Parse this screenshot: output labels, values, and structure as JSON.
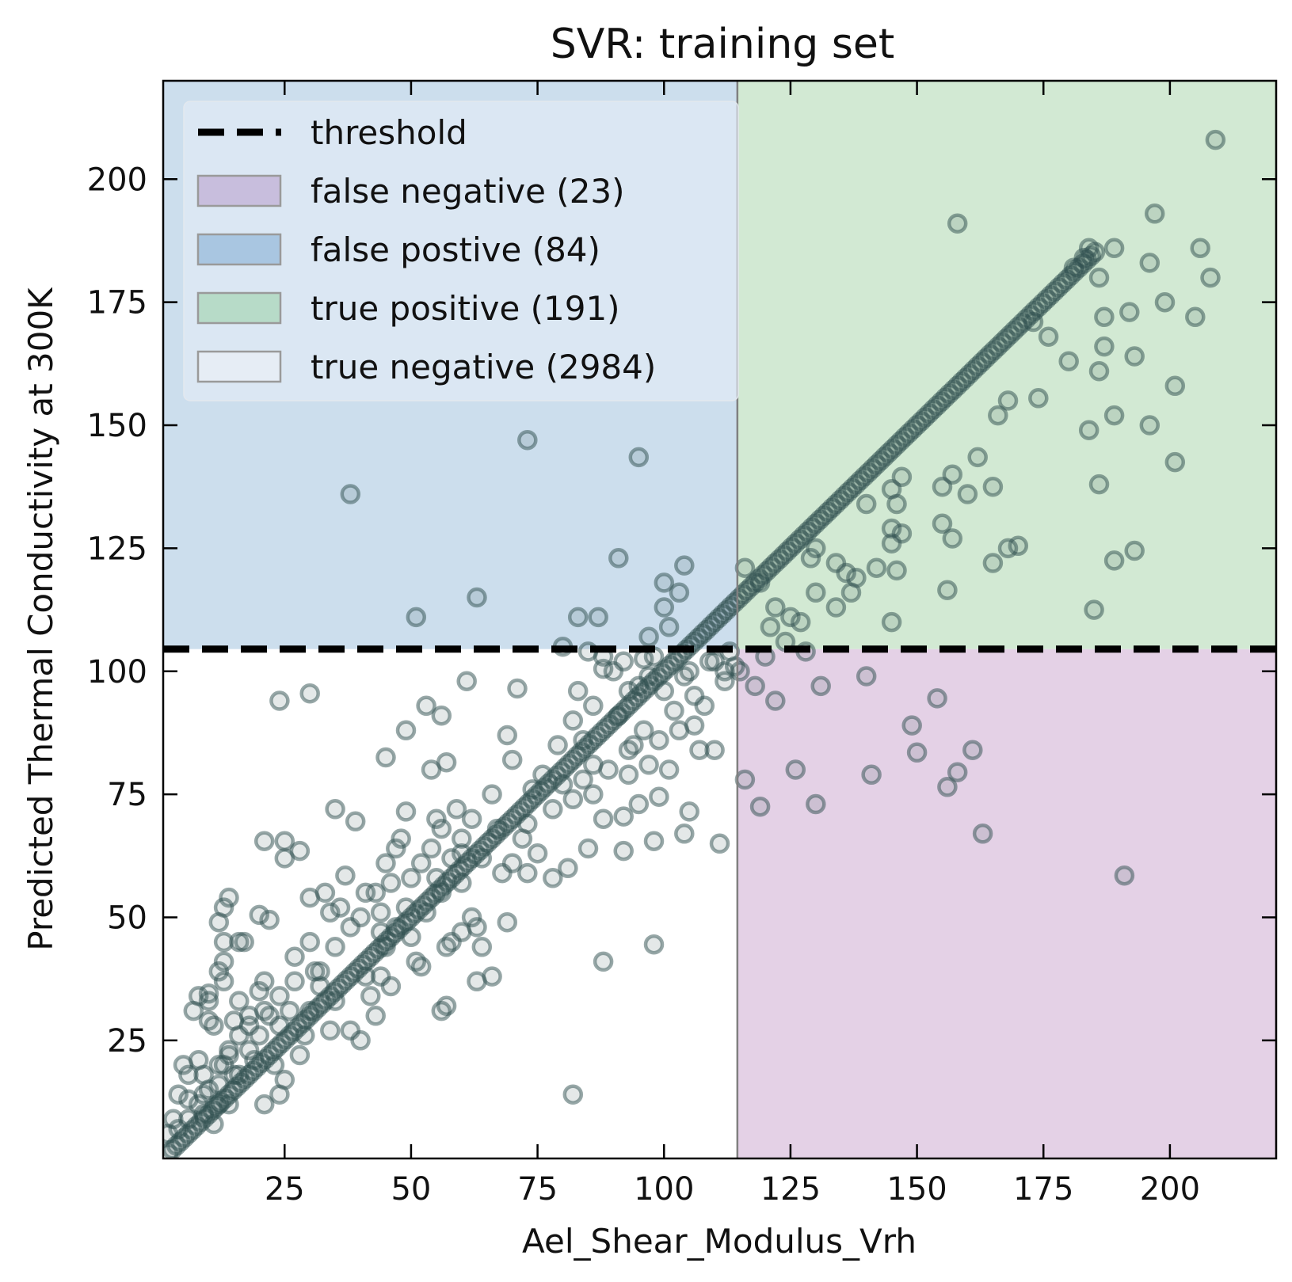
{
  "chart_data": {
    "type": "scatter",
    "title": "SVR: training set",
    "xlabel": "Ael_Shear_Modulus_Vrh",
    "ylabel": "Predicted Thermal Conductivity at 300K",
    "xlim": [
      1,
      221
    ],
    "ylim": [
      1,
      220
    ],
    "x_ticks": [
      25,
      50,
      75,
      100,
      125,
      150,
      175,
      200
    ],
    "y_ticks": [
      25,
      50,
      75,
      100,
      125,
      150,
      175,
      200
    ],
    "threshold": {
      "x": 114.5,
      "y": 104.5
    },
    "grid": false,
    "legend_position": "top-left",
    "legend": [
      {
        "label": "threshold",
        "kind": "dashed-line",
        "color": "#000000"
      },
      {
        "label": "false negative (23)",
        "kind": "patch",
        "color": "#c8bedd"
      },
      {
        "label": "false postive (84)",
        "kind": "patch",
        "color": "#a9c6e1"
      },
      {
        "label": "true positive (191)",
        "kind": "patch",
        "color": "#b7dbc8"
      },
      {
        "label": "true negative (2984)",
        "kind": "patch",
        "color": "#e6edf5"
      }
    ],
    "region_colors": {
      "false_negative": "#e4d1e6",
      "false_positive": "#ccdeed",
      "true_positive": "#d2e9d3",
      "true_negative": "#ffffff"
    },
    "marker_color": "#2f4f4f",
    "diagonal_dense_band": {
      "from": 2,
      "to": 186
    },
    "series": [
      {
        "points": [
          [
            38,
            136
          ],
          [
            73,
            147
          ],
          [
            95,
            143.5
          ],
          [
            63,
            115
          ],
          [
            51,
            111
          ],
          [
            83,
            111
          ],
          [
            87,
            111
          ],
          [
            91,
            123
          ],
          [
            100,
            118
          ],
          [
            104,
            121.5
          ],
          [
            103,
            116
          ],
          [
            100,
            113
          ],
          [
            97,
            107
          ],
          [
            101,
            109
          ],
          [
            80,
            105
          ],
          [
            85,
            104
          ],
          [
            88,
            103
          ],
          [
            98,
            103
          ],
          [
            92,
            102
          ],
          [
            96,
            102.5
          ],
          [
            158,
            191
          ],
          [
            197,
            193
          ],
          [
            209,
            208
          ],
          [
            189,
            186
          ],
          [
            206,
            186
          ],
          [
            208,
            180
          ],
          [
            199,
            175
          ],
          [
            192,
            173
          ],
          [
            187,
            172
          ],
          [
            205,
            172
          ],
          [
            187,
            166
          ],
          [
            193,
            164
          ],
          [
            180,
            163
          ],
          [
            201,
            158
          ],
          [
            186,
            161
          ],
          [
            168,
            155
          ],
          [
            174,
            155.5
          ],
          [
            166,
            152
          ],
          [
            189,
            152
          ],
          [
            196,
            150
          ],
          [
            184,
            149
          ],
          [
            162,
            143.5
          ],
          [
            201,
            142.5
          ],
          [
            157,
            140
          ],
          [
            186,
            138
          ],
          [
            155,
            137.5
          ],
          [
            160,
            136
          ],
          [
            165,
            137.5
          ],
          [
            145,
            137
          ],
          [
            147,
            139.5
          ],
          [
            146,
            134
          ],
          [
            140,
            134
          ],
          [
            145,
            129
          ],
          [
            147,
            128
          ],
          [
            145,
            126
          ],
          [
            155,
            130
          ],
          [
            157,
            127
          ],
          [
            168,
            125
          ],
          [
            189,
            122.5
          ],
          [
            193,
            124.5
          ],
          [
            134,
            122
          ],
          [
            130,
            125
          ],
          [
            129,
            123
          ],
          [
            136,
            120
          ],
          [
            138,
            119
          ],
          [
            142,
            121
          ],
          [
            146,
            120.5
          ],
          [
            137,
            116
          ],
          [
            130,
            116
          ],
          [
            116,
            121
          ],
          [
            119,
            118
          ],
          [
            122,
            113
          ],
          [
            125,
            111
          ],
          [
            127,
            110
          ],
          [
            121,
            109
          ],
          [
            124,
            106
          ],
          [
            128,
            104
          ],
          [
            134,
            113
          ],
          [
            145,
            110
          ],
          [
            156,
            116.5
          ],
          [
            185,
            112.5
          ],
          [
            170,
            125.5
          ],
          [
            165,
            122
          ],
          [
            176,
            168
          ],
          [
            186,
            180
          ],
          [
            196,
            183
          ],
          [
            181,
            182
          ],
          [
            183,
            184
          ],
          [
            184,
            186
          ],
          [
            173,
            171
          ],
          [
            115,
            100
          ],
          [
            118,
            97
          ],
          [
            122,
            94
          ],
          [
            131,
            97
          ],
          [
            140,
            99
          ],
          [
            120,
            103
          ],
          [
            112,
            98
          ],
          [
            109,
            102
          ],
          [
            105,
            100
          ],
          [
            106,
            95
          ],
          [
            116,
            78
          ],
          [
            119,
            72.5
          ],
          [
            126,
            80
          ],
          [
            130,
            73
          ],
          [
            141,
            79
          ],
          [
            149,
            89
          ],
          [
            150,
            83.5
          ],
          [
            154,
            94.5
          ],
          [
            156,
            76.5
          ],
          [
            158,
            79.5
          ],
          [
            161,
            84
          ],
          [
            163,
            67
          ],
          [
            191,
            58.5
          ],
          [
            24,
            94
          ],
          [
            30,
            95.5
          ],
          [
            61,
            98
          ],
          [
            71,
            96.5
          ],
          [
            83,
            96
          ],
          [
            88,
            100.5
          ],
          [
            90,
            100
          ],
          [
            53,
            93
          ],
          [
            56,
            91
          ],
          [
            49,
            88
          ],
          [
            45,
            82.5
          ],
          [
            57,
            81.5
          ],
          [
            54,
            80
          ],
          [
            69,
            87
          ],
          [
            70,
            82
          ],
          [
            84,
            86
          ],
          [
            86,
            81
          ],
          [
            93,
            79
          ],
          [
            93,
            84
          ],
          [
            103,
            88
          ],
          [
            107,
            84
          ],
          [
            110,
            84
          ],
          [
            35,
            72
          ],
          [
            39,
            69.5
          ],
          [
            49,
            71.5
          ],
          [
            54,
            64
          ],
          [
            60,
            66
          ],
          [
            66,
            75
          ],
          [
            74,
            76
          ],
          [
            80,
            77
          ],
          [
            88,
            70
          ],
          [
            92,
            70.5
          ],
          [
            95,
            73
          ],
          [
            101,
            80
          ],
          [
            104,
            67
          ],
          [
            105,
            71.5
          ],
          [
            111,
            65
          ],
          [
            99,
            74.5
          ],
          [
            98,
            65.5
          ],
          [
            92,
            63.5
          ],
          [
            68,
            59
          ],
          [
            73,
            59
          ],
          [
            64,
            62
          ],
          [
            58,
            62
          ],
          [
            56,
            68
          ],
          [
            52,
            61
          ],
          [
            47,
            64
          ],
          [
            21,
            65.5
          ],
          [
            25,
            65.5
          ],
          [
            25,
            62
          ],
          [
            28,
            63.5
          ],
          [
            33,
            55
          ],
          [
            37,
            58.5
          ],
          [
            41,
            55
          ],
          [
            44,
            51
          ],
          [
            46,
            57
          ],
          [
            49,
            52
          ],
          [
            53,
            51
          ],
          [
            55,
            58
          ],
          [
            56,
            55
          ],
          [
            60,
            57
          ],
          [
            62,
            50
          ],
          [
            69,
            49
          ],
          [
            63,
            48
          ],
          [
            57,
            44
          ],
          [
            51,
            41
          ],
          [
            41,
            38
          ],
          [
            34,
            51
          ],
          [
            30,
            54
          ],
          [
            30,
            45
          ],
          [
            35,
            44
          ],
          [
            31,
            39
          ],
          [
            35,
            33
          ],
          [
            32,
            36
          ],
          [
            30,
            31
          ],
          [
            29,
            26
          ],
          [
            26,
            31
          ],
          [
            24,
            28
          ],
          [
            24,
            34
          ],
          [
            21,
            37
          ],
          [
            20,
            35
          ],
          [
            21,
            31
          ],
          [
            18,
            30
          ],
          [
            16,
            33
          ],
          [
            13,
            37
          ],
          [
            12,
            39
          ],
          [
            13,
            41
          ],
          [
            12,
            49
          ],
          [
            13,
            52
          ],
          [
            14,
            54
          ],
          [
            13,
            45
          ],
          [
            16,
            45
          ],
          [
            17,
            45
          ],
          [
            20,
            50.5
          ],
          [
            22,
            49.5
          ],
          [
            27,
            42
          ],
          [
            32,
            39
          ],
          [
            44,
            38
          ],
          [
            46,
            36
          ],
          [
            43,
            30
          ],
          [
            38,
            27
          ],
          [
            34,
            27
          ],
          [
            28,
            22
          ],
          [
            25,
            17
          ],
          [
            24,
            14
          ],
          [
            21,
            12
          ],
          [
            23,
            20
          ],
          [
            11,
            28
          ],
          [
            10,
            33
          ],
          [
            8,
            34
          ],
          [
            10,
            34.5
          ],
          [
            7,
            31
          ],
          [
            10,
            29
          ],
          [
            15,
            29
          ],
          [
            14,
            23
          ],
          [
            13,
            20
          ],
          [
            12,
            16
          ],
          [
            9,
            18
          ],
          [
            5,
            20
          ],
          [
            6,
            13
          ],
          [
            4,
            14
          ],
          [
            3,
            9
          ],
          [
            6,
            18
          ],
          [
            9,
            10
          ],
          [
            11,
            8
          ],
          [
            14,
            12
          ],
          [
            15,
            18
          ],
          [
            18,
            23
          ],
          [
            20,
            26
          ],
          [
            8,
            21
          ],
          [
            10,
            15
          ],
          [
            12,
            12
          ],
          [
            2,
            6
          ],
          [
            4,
            7
          ],
          [
            16,
            18
          ],
          [
            19,
            21
          ],
          [
            40,
            25
          ],
          [
            42,
            34
          ],
          [
            45,
            44
          ],
          [
            47,
            48
          ],
          [
            50,
            46
          ],
          [
            52,
            40
          ],
          [
            58,
            45
          ],
          [
            60,
            47
          ],
          [
            64,
            44
          ],
          [
            66,
            38
          ],
          [
            63,
            37
          ],
          [
            56,
            31
          ],
          [
            57,
            32
          ],
          [
            82,
            14
          ],
          [
            88,
            41
          ],
          [
            98,
            44.5
          ],
          [
            67,
            68
          ],
          [
            72,
            66
          ],
          [
            75,
            63
          ],
          [
            78,
            72
          ],
          [
            82,
            74
          ],
          [
            84,
            78
          ],
          [
            86,
            75
          ],
          [
            89,
            80
          ],
          [
            94,
            85
          ],
          [
            96,
            88
          ],
          [
            97,
            81
          ],
          [
            99,
            86
          ],
          [
            102,
            92
          ],
          [
            106,
            89
          ],
          [
            108,
            93
          ],
          [
            100,
            96
          ],
          [
            104,
            99
          ],
          [
            110,
            102
          ],
          [
            112,
            100
          ],
          [
            113,
            104
          ],
          [
            114,
            101
          ],
          [
            78,
            58
          ],
          [
            81,
            60
          ],
          [
            85,
            64
          ],
          [
            62,
            70
          ],
          [
            60,
            63
          ],
          [
            59,
            72
          ],
          [
            55,
            70
          ],
          [
            50,
            58
          ],
          [
            48,
            66
          ],
          [
            45,
            61
          ],
          [
            43,
            55
          ],
          [
            40,
            50
          ],
          [
            38,
            48
          ],
          [
            36,
            52
          ],
          [
            70,
            61
          ],
          [
            73,
            69
          ],
          [
            76,
            79
          ],
          [
            79,
            85
          ],
          [
            82,
            90
          ],
          [
            86,
            93
          ],
          [
            91,
            91
          ],
          [
            93,
            96
          ],
          [
            95,
            97
          ],
          [
            97,
            99
          ],
          [
            44,
            47
          ],
          [
            27,
            37
          ],
          [
            22,
            30
          ],
          [
            18,
            28
          ],
          [
            16,
            26
          ],
          [
            14,
            22
          ],
          [
            12,
            20
          ],
          [
            9,
            14
          ],
          [
            8,
            12
          ],
          [
            6,
            9
          ]
        ]
      }
    ]
  }
}
